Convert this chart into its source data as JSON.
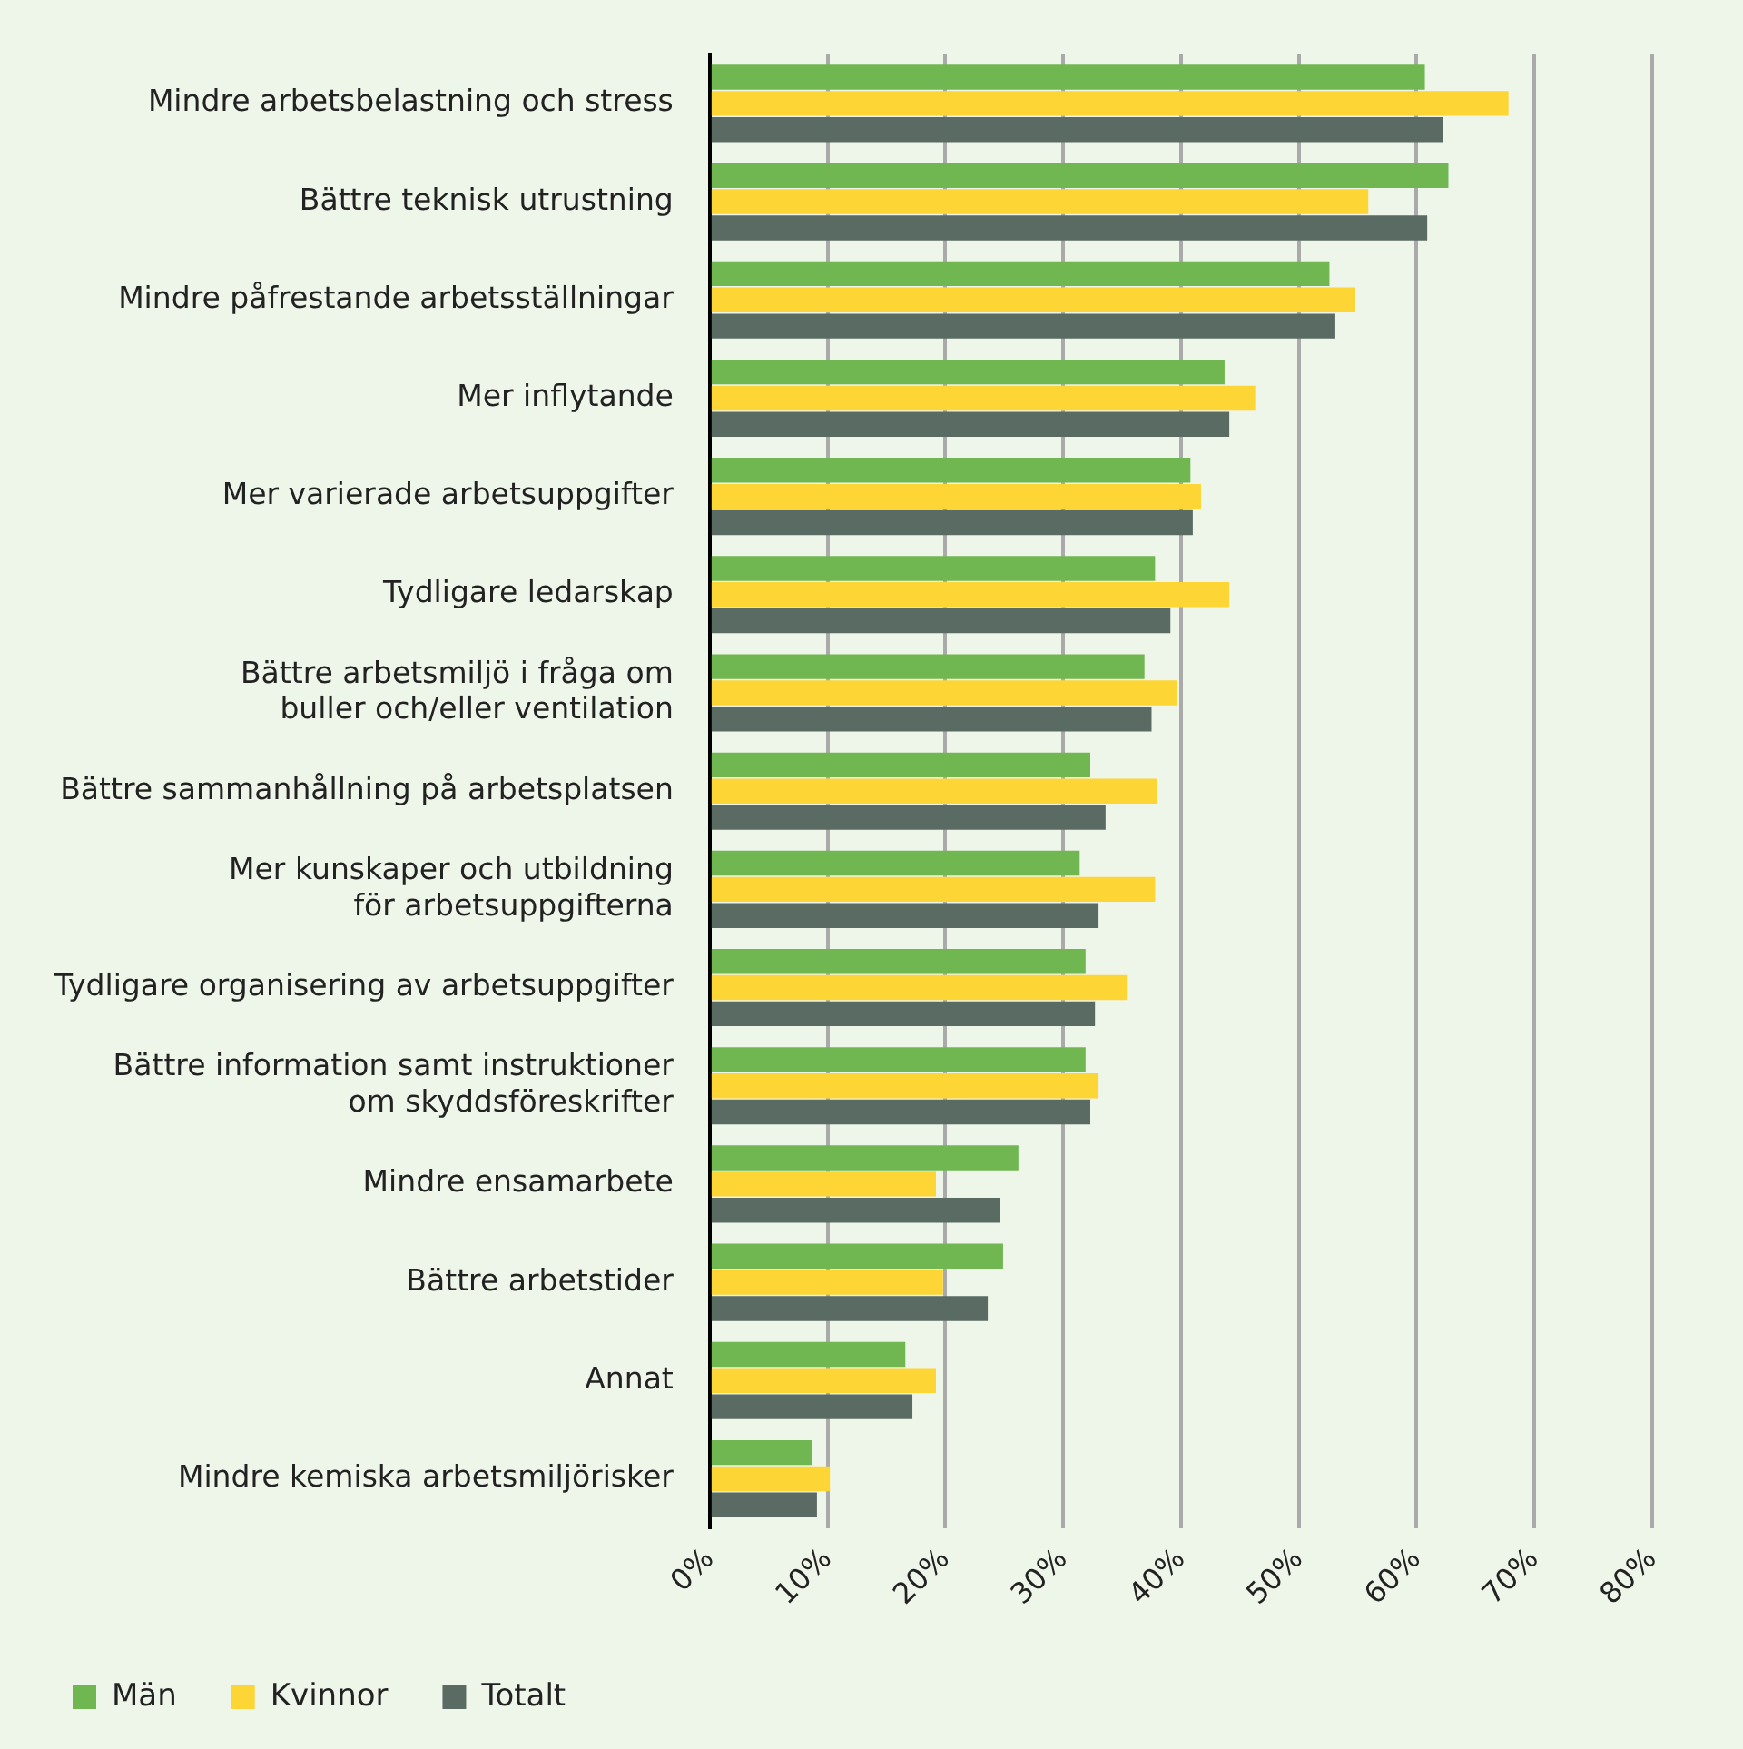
{
  "chart_data": {
    "type": "bar",
    "orientation": "horizontal",
    "categories": [
      "Mindre arbetsbelastning och stress",
      "Bättre teknisk utrustning",
      "Mindre påfrestande arbetsställningar",
      "Mer inflytande",
      "Mer varierade arbetsuppgifter",
      "Tydligare ledarskap",
      "Bättre arbetsmiljö i fråga om\nbuller och/eller ventilation",
      "Bättre sammanhållning på arbetsplatsen",
      "Mer kunskaper och utbildning\nför arbetsuppgifterna",
      "Tydligare organisering av arbetsuppgifter",
      "Bättre information samt instruktioner\nom skyddsföreskrifter",
      "Mindre ensamarbete",
      "Bättre arbetstider",
      "Annat",
      "Mindre kemiska arbetsmiljörisker"
    ],
    "series": [
      {
        "name": "Män",
        "color": "#70b752",
        "values": [
          60.7,
          62.7,
          52.6,
          43.7,
          40.8,
          37.8,
          36.9,
          32.3,
          31.4,
          31.9,
          31.9,
          26.2,
          24.9,
          16.6,
          8.7
        ]
      },
      {
        "name": "Kvinnor",
        "color": "#fdd535",
        "values": [
          67.8,
          55.9,
          54.8,
          46.3,
          41.7,
          44.1,
          39.7,
          38.0,
          37.8,
          35.4,
          33.0,
          19.2,
          19.8,
          19.2,
          10.2
        ]
      },
      {
        "name": "Totalt",
        "color": "#5a6b63",
        "values": [
          62.2,
          60.9,
          53.1,
          44.1,
          41.0,
          39.1,
          37.5,
          33.6,
          33.0,
          32.7,
          32.3,
          24.6,
          23.6,
          17.2,
          9.1
        ]
      }
    ],
    "xlim": [
      0,
      80
    ],
    "xticks": [
      {
        "value": 0,
        "label": "0%"
      },
      {
        "value": 10,
        "label": "10%"
      },
      {
        "value": 20,
        "label": "20%"
      },
      {
        "value": 30,
        "label": "30%"
      },
      {
        "value": 40,
        "label": "40%"
      },
      {
        "value": 50,
        "label": "50%"
      },
      {
        "value": 60,
        "label": "60%"
      },
      {
        "value": 70,
        "label": "70%"
      },
      {
        "value": 80,
        "label": "80%"
      }
    ],
    "grid": "x",
    "legend": "bottom left"
  }
}
